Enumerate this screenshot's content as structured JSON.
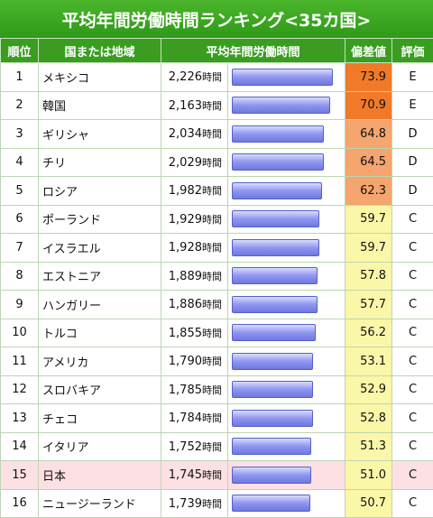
{
  "title": "平均年間労働時間ランキング<35カ国>",
  "headers": {
    "rank": "順位",
    "country": "国または地域",
    "hours": "平均年間労働時間",
    "deviation": "偏差値",
    "grade": "評価"
  },
  "hours_unit": "時間",
  "colors": {
    "header_bg": "#3a9d21",
    "deviation_very_high": "#f07a28",
    "deviation_high": "#f5a56e",
    "deviation_mid": "#fbf7a8",
    "highlight_row": "#fde0e4",
    "bar": "#8f96f0"
  },
  "bar_max_hours": 2226,
  "rows": [
    {
      "rank": "1",
      "country": "メキシコ",
      "hours": "2,226",
      "hours_value": 2226,
      "deviation": "73.9",
      "grade": "E",
      "level": "very_high",
      "highlight": false
    },
    {
      "rank": "2",
      "country": "韓国",
      "hours": "2,163",
      "hours_value": 2163,
      "deviation": "70.9",
      "grade": "E",
      "level": "very_high",
      "highlight": false
    },
    {
      "rank": "3",
      "country": "ギリシャ",
      "hours": "2,034",
      "hours_value": 2034,
      "deviation": "64.8",
      "grade": "D",
      "level": "high",
      "highlight": false
    },
    {
      "rank": "4",
      "country": "チリ",
      "hours": "2,029",
      "hours_value": 2029,
      "deviation": "64.5",
      "grade": "D",
      "level": "high",
      "highlight": false
    },
    {
      "rank": "5",
      "country": "ロシア",
      "hours": "1,982",
      "hours_value": 1982,
      "deviation": "62.3",
      "grade": "D",
      "level": "high",
      "highlight": false
    },
    {
      "rank": "6",
      "country": "ポーランド",
      "hours": "1,929",
      "hours_value": 1929,
      "deviation": "59.7",
      "grade": "C",
      "level": "mid",
      "highlight": false
    },
    {
      "rank": "7",
      "country": "イスラエル",
      "hours": "1,928",
      "hours_value": 1928,
      "deviation": "59.7",
      "grade": "C",
      "level": "mid",
      "highlight": false
    },
    {
      "rank": "8",
      "country": "エストニア",
      "hours": "1,889",
      "hours_value": 1889,
      "deviation": "57.8",
      "grade": "C",
      "level": "mid",
      "highlight": false
    },
    {
      "rank": "9",
      "country": "ハンガリー",
      "hours": "1,886",
      "hours_value": 1886,
      "deviation": "57.7",
      "grade": "C",
      "level": "mid",
      "highlight": false
    },
    {
      "rank": "10",
      "country": "トルコ",
      "hours": "1,855",
      "hours_value": 1855,
      "deviation": "56.2",
      "grade": "C",
      "level": "mid",
      "highlight": false
    },
    {
      "rank": "11",
      "country": "アメリカ",
      "hours": "1,790",
      "hours_value": 1790,
      "deviation": "53.1",
      "grade": "C",
      "level": "mid",
      "highlight": false
    },
    {
      "rank": "12",
      "country": "スロバキア",
      "hours": "1,785",
      "hours_value": 1785,
      "deviation": "52.9",
      "grade": "C",
      "level": "mid",
      "highlight": false
    },
    {
      "rank": "13",
      "country": "チェコ",
      "hours": "1,784",
      "hours_value": 1784,
      "deviation": "52.8",
      "grade": "C",
      "level": "mid",
      "highlight": false
    },
    {
      "rank": "14",
      "country": "イタリア",
      "hours": "1,752",
      "hours_value": 1752,
      "deviation": "51.3",
      "grade": "C",
      "level": "mid",
      "highlight": false
    },
    {
      "rank": "15",
      "country": "日本",
      "hours": "1,745",
      "hours_value": 1745,
      "deviation": "51.0",
      "grade": "C",
      "level": "mid",
      "highlight": true
    },
    {
      "rank": "16",
      "country": "ニュージーランド",
      "hours": "1,739",
      "hours_value": 1739,
      "deviation": "50.7",
      "grade": "C",
      "level": "mid",
      "highlight": false
    }
  ]
}
